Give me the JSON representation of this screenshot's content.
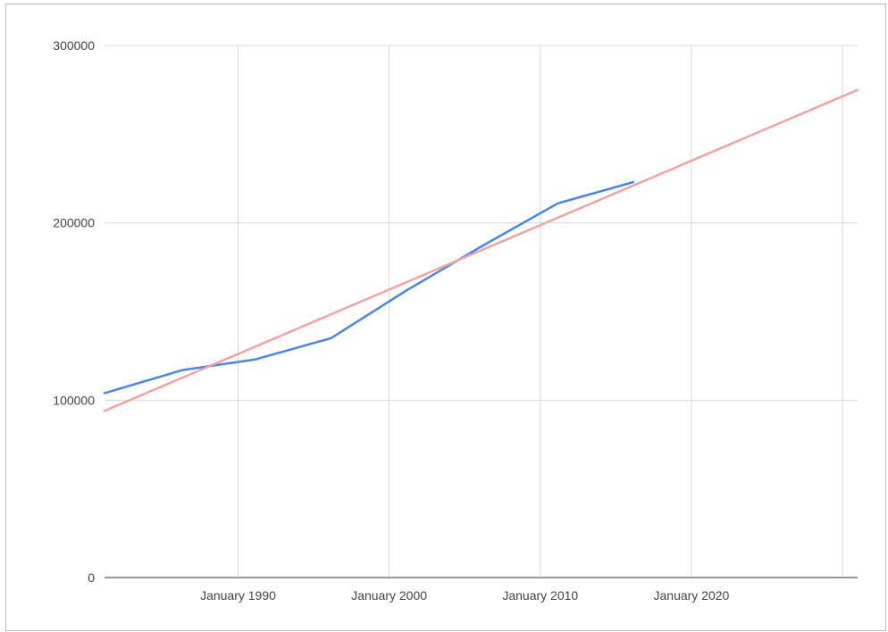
{
  "chart_data": {
    "type": "line",
    "title": "",
    "xlabel": "",
    "ylabel": "",
    "x_axis": {
      "type": "date",
      "range": [
        "1981-03-01",
        "2031-01-01"
      ],
      "ticks": [
        {
          "date": "1990-01-01",
          "label": "January 1990"
        },
        {
          "date": "2000-01-01",
          "label": "January 2000"
        },
        {
          "date": "2010-01-01",
          "label": "January 2010"
        },
        {
          "date": "2020-01-01",
          "label": "January 2020"
        }
      ],
      "extra_gridlines": [
        "2030-01-01"
      ]
    },
    "y_axis": {
      "range": [
        0,
        300000
      ],
      "ticks": [
        {
          "value": 0,
          "label": "0"
        },
        {
          "value": 100000,
          "label": "100000"
        },
        {
          "value": 200000,
          "label": "200000"
        },
        {
          "value": 300000,
          "label": "300000"
        }
      ]
    },
    "grid": true,
    "legend": "none",
    "series": [
      {
        "color": "#4a86e8",
        "points": [
          {
            "x": "1981-03-01",
            "y": 104000
          },
          {
            "x": "1986-05-01",
            "y": 117000
          },
          {
            "x": "1991-03-01",
            "y": 123000
          },
          {
            "x": "1996-03-01",
            "y": 135000
          },
          {
            "x": "2001-03-01",
            "y": 162000
          },
          {
            "x": "2006-03-01",
            "y": 187000
          },
          {
            "x": "2011-03-01",
            "y": 211000
          },
          {
            "x": "2016-03-01",
            "y": 223000
          }
        ]
      },
      {
        "color": "#f4a3a3",
        "points": [
          {
            "x": "1981-03-01",
            "y": 94000
          },
          {
            "x": "2031-01-01",
            "y": 275000
          }
        ]
      }
    ]
  }
}
